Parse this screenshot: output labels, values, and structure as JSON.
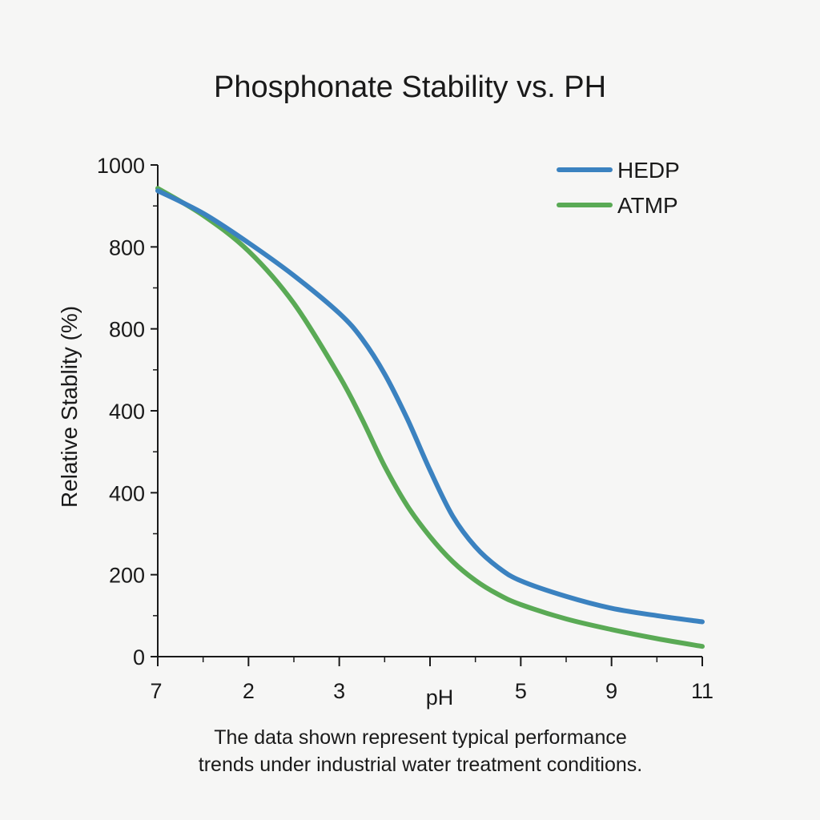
{
  "colors": {
    "hedp": "#3b82c0",
    "atmp": "#5aaa55",
    "axis": "#1a1a1a",
    "background": "#f6f6f5"
  },
  "caption": {
    "line1": "The data shown represent typical performance",
    "line2": "trends under industrial water treatment conditions."
  },
  "chart_data": {
    "type": "line",
    "title": "Phosphonate Stability vs. PH",
    "xlabel": "pH",
    "ylabel": "Relative Stablity (%)",
    "x_tick_labels": [
      "7",
      "2",
      "3",
      "pH",
      "5",
      "9",
      "11"
    ],
    "y_tick_labels": [
      "0",
      "200",
      "400",
      "400",
      "800",
      "800",
      "1000"
    ],
    "x_positions": [
      0,
      1,
      2,
      3,
      4,
      5,
      6
    ],
    "y_range": [
      0,
      1200
    ],
    "grid": false,
    "legend_position": "top-right",
    "series": [
      {
        "name": "HEDP",
        "color": "#3b82c0",
        "x": [
          0,
          0.5,
          1,
          1.5,
          2,
          2.25,
          2.5,
          2.75,
          3,
          3.25,
          3.5,
          3.75,
          4,
          4.5,
          5,
          5.5,
          6
        ],
        "y": [
          1137,
          1082,
          1010,
          930,
          838,
          776,
          690,
          580,
          455,
          343,
          268,
          218,
          185,
          147,
          118,
          100,
          85
        ]
      },
      {
        "name": "ATMP",
        "color": "#5aaa55",
        "x": [
          0,
          0.5,
          1,
          1.5,
          2,
          2.25,
          2.5,
          2.75,
          3,
          3.25,
          3.5,
          3.75,
          4,
          4.5,
          5,
          5.5,
          6
        ],
        "y": [
          1143,
          1077,
          990,
          862,
          685,
          580,
          465,
          368,
          293,
          232,
          186,
          152,
          127,
          92,
          66,
          44,
          25
        ]
      }
    ]
  }
}
